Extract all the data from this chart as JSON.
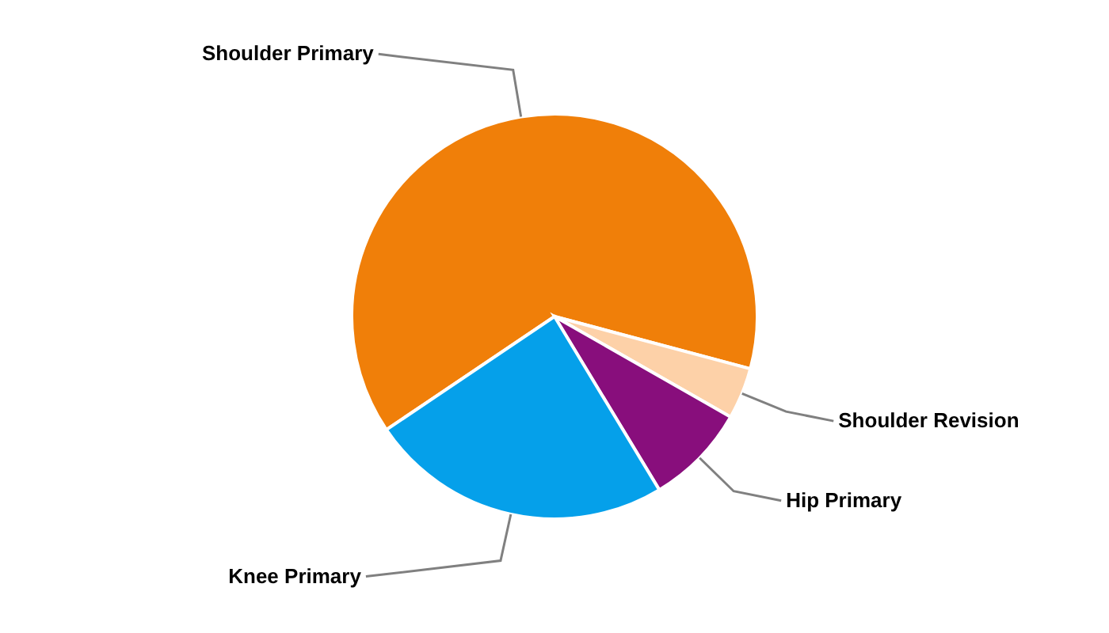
{
  "chart_data": {
    "type": "pie",
    "categories": [
      "Shoulder Primary",
      "Shoulder Revision",
      "Hip Primary",
      "Knee Primary"
    ],
    "values": [
      63.6,
      4.1,
      8.1,
      24.2
    ],
    "colors": [
      "#f07f09",
      "#fdd1a8",
      "#880e7c",
      "#05a0ea"
    ]
  }
}
